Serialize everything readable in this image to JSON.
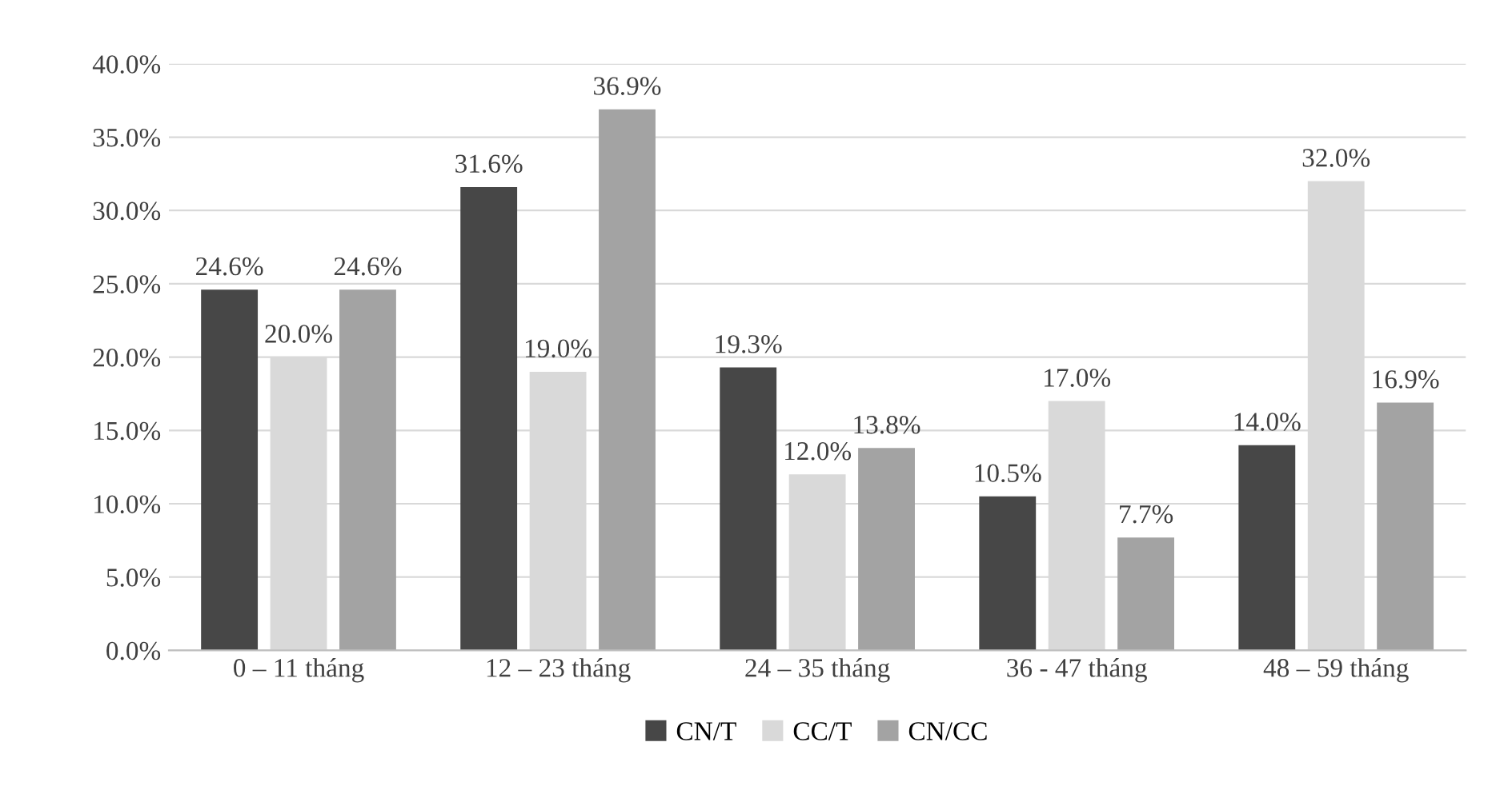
{
  "chart_data": {
    "type": "bar",
    "categories": [
      "0 – 11 tháng",
      "12 – 23 tháng",
      "24 – 35 tháng",
      "36 - 47 tháng",
      "48 – 59 tháng"
    ],
    "series": [
      {
        "name": "CN/T",
        "color": "#474747",
        "values": [
          24.6,
          31.6,
          19.3,
          10.5,
          14.0
        ],
        "value_labels": [
          "24.6%",
          "31.6%",
          "19.3%",
          "10.5%",
          "14.0%"
        ]
      },
      {
        "name": "CC/T",
        "color": "#d9d9d9",
        "values": [
          20.0,
          19.0,
          12.0,
          17.0,
          32.0
        ],
        "value_labels": [
          "20.0%",
          "19.0%",
          "12.0%",
          "17.0%",
          "32.0%"
        ]
      },
      {
        "name": "CN/CC",
        "color": "#a3a3a3",
        "values": [
          24.6,
          36.9,
          13.8,
          7.7,
          16.9
        ],
        "value_labels": [
          "24.6%",
          "36.9%",
          "13.8%",
          "7.7%",
          "16.9%"
        ]
      }
    ],
    "ylim": [
      0,
      40
    ],
    "yticks": [
      {
        "value": 0,
        "label": "0.0%"
      },
      {
        "value": 5,
        "label": "5.0%"
      },
      {
        "value": 10,
        "label": "10.0%"
      },
      {
        "value": 15,
        "label": "15.0%"
      },
      {
        "value": 20,
        "label": "20.0%"
      },
      {
        "value": 25,
        "label": "25.0%"
      },
      {
        "value": 30,
        "label": "30.0%"
      },
      {
        "value": 35,
        "label": "35.0%"
      },
      {
        "value": 40,
        "label": "40.0%"
      }
    ],
    "grid": "y",
    "legend": "bottom"
  }
}
